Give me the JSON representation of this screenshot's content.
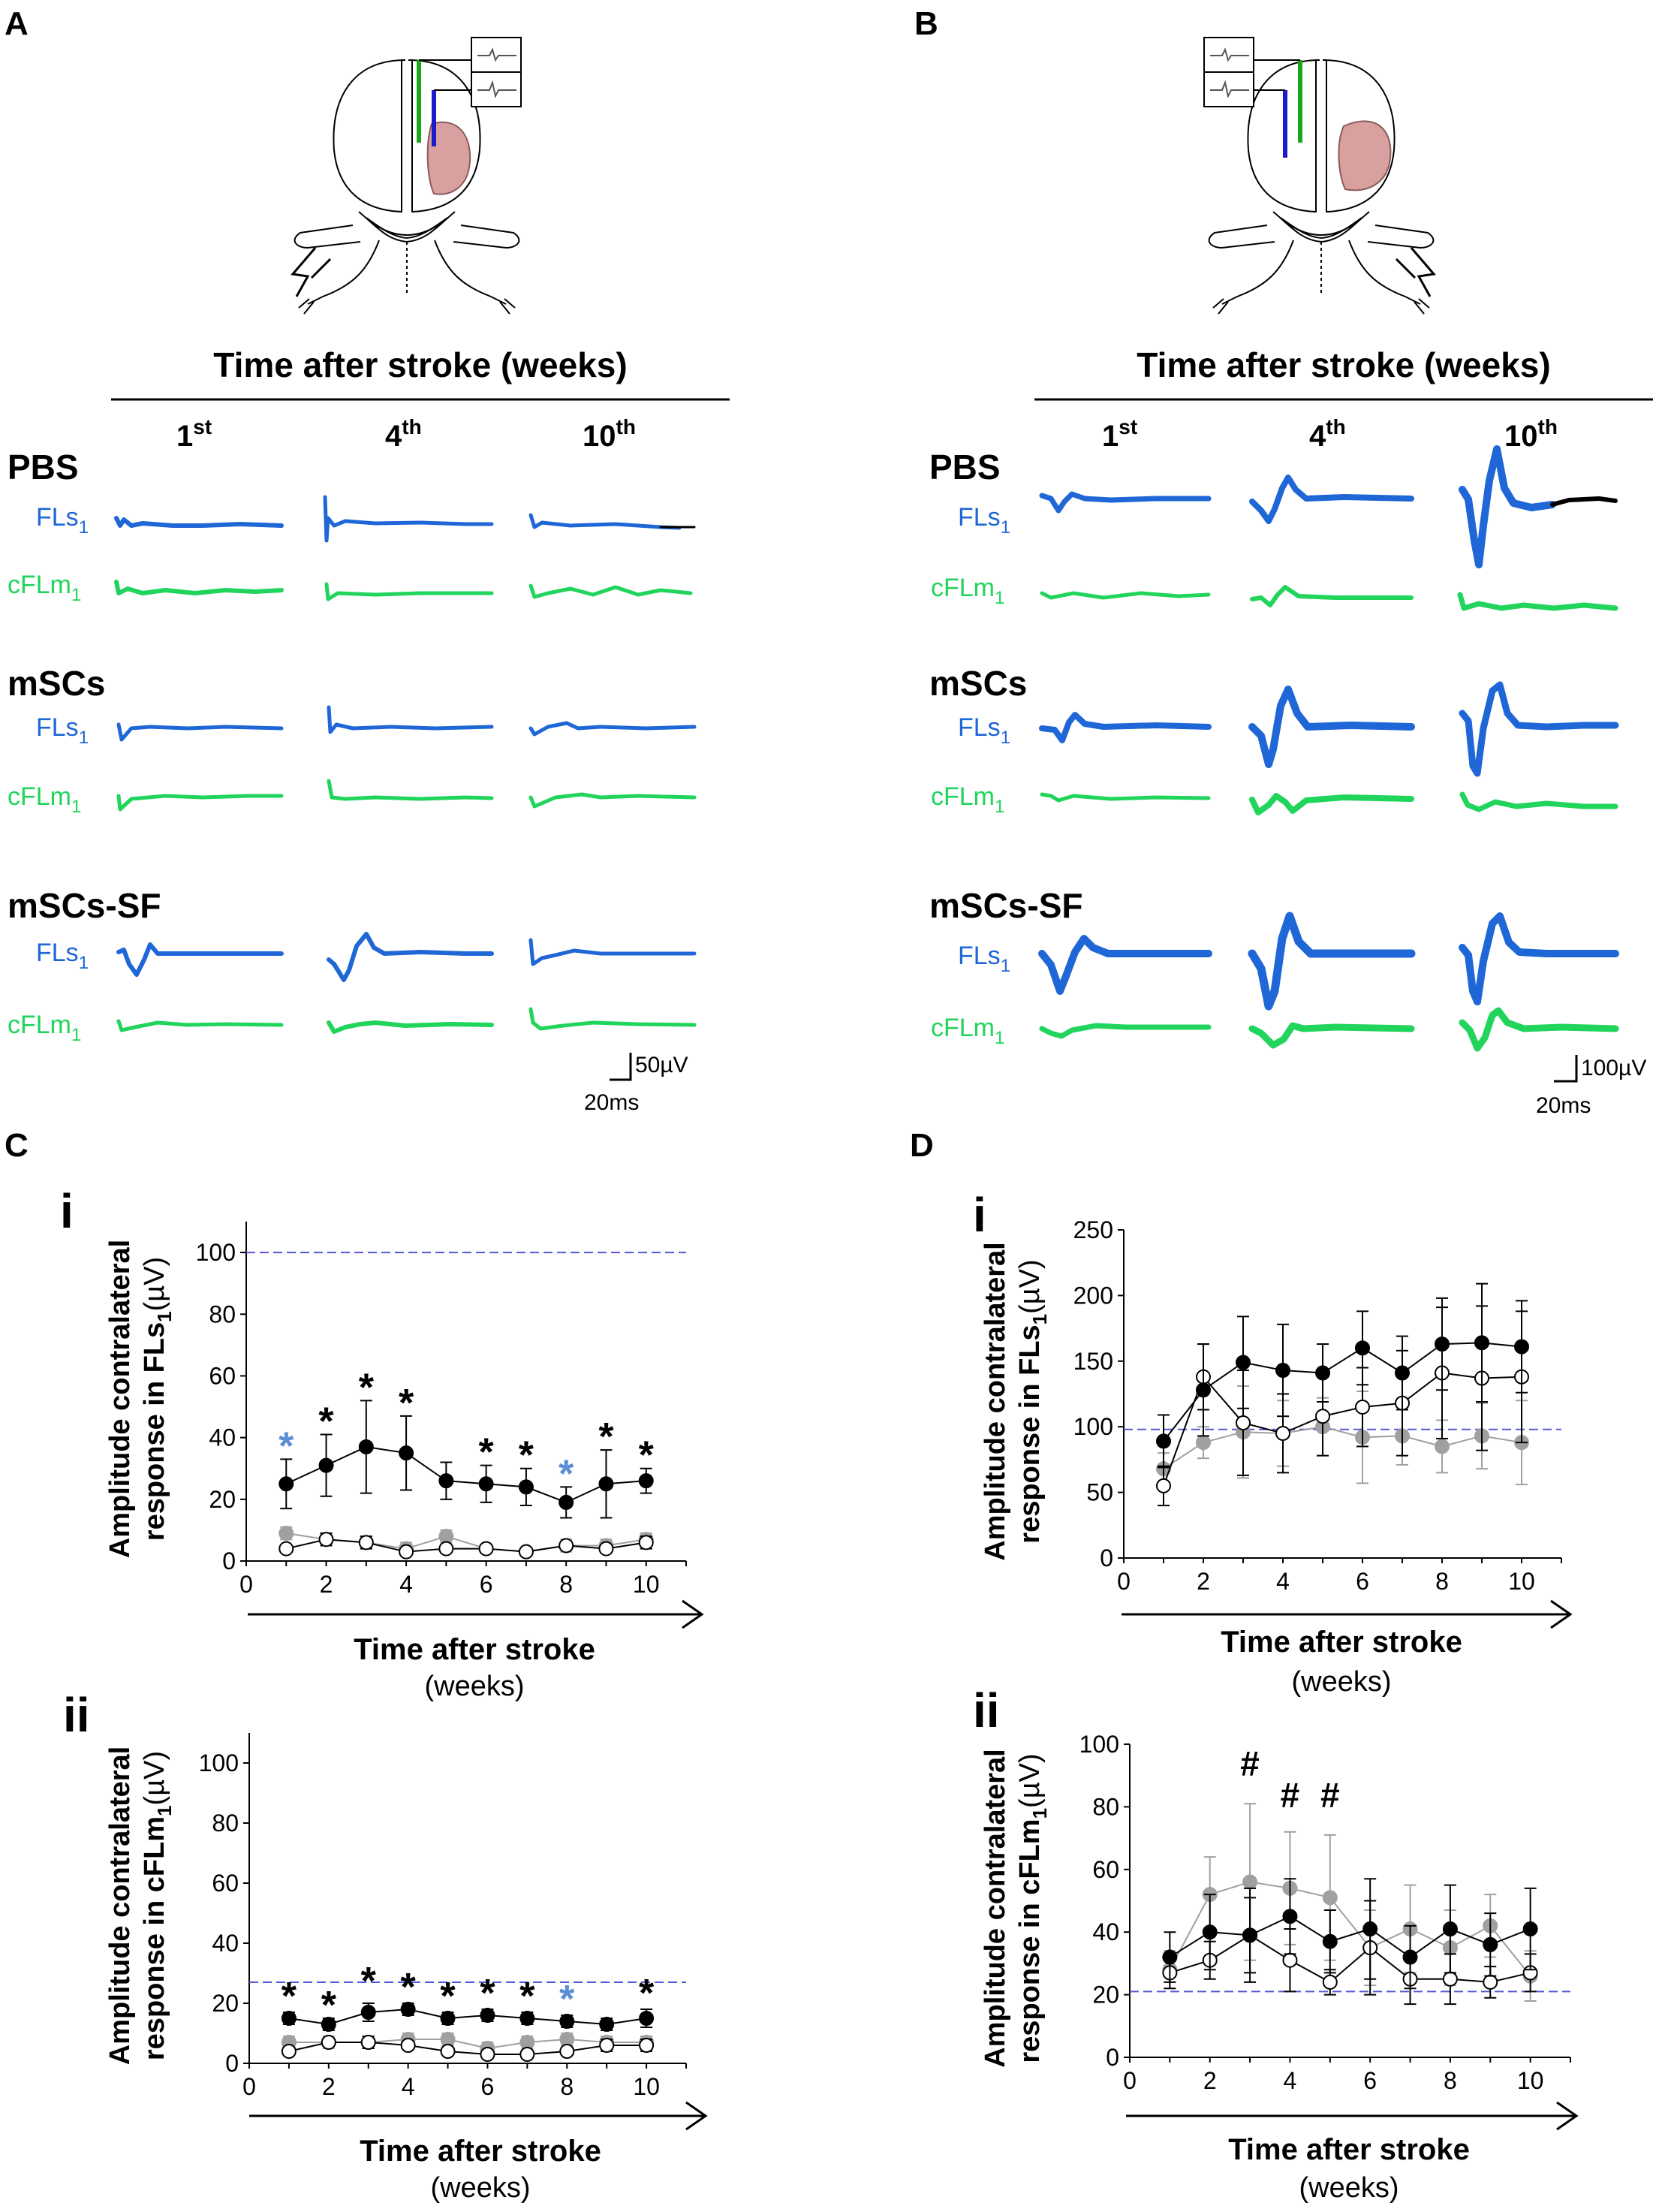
{
  "panels": {
    "A": "A",
    "B": "B",
    "C": "C",
    "D": "D"
  },
  "header": "Time after stroke (weeks)",
  "weeks": [
    {
      "num": "1",
      "sup": "st"
    },
    {
      "num": "4",
      "sup": "th"
    },
    {
      "num": "10",
      "sup": "th"
    }
  ],
  "groups": [
    "PBS",
    "mSCs",
    "mSCs-SF"
  ],
  "channels": {
    "fls": {
      "main": "FLs",
      "sub": "1"
    },
    "cflm": {
      "main": "cFLm",
      "sub": "1"
    }
  },
  "scale_bars": {
    "A": {
      "amp": "50µV",
      "time": "20ms"
    },
    "B": {
      "amp": "100µV",
      "time": "20ms"
    }
  },
  "colors": {
    "fls": "#1f66d6",
    "cfl": "#20d45c",
    "ref": "#5555d8",
    "black": "#000000",
    "gray": "#a0a0a0",
    "sig_blue": "#5b8ed6",
    "lesion": "#d9a0a0",
    "electrode_green": "#1aa81a",
    "electrode_blue": "#1b1bc8"
  },
  "chart_data": [
    {
      "id": "C-i",
      "panel": "C",
      "roman": "i",
      "type": "line",
      "ylabel": [
        "Amplitude contralateral",
        "response in FLs",
        "1",
        "(µV)"
      ],
      "xlabel": "Time after stroke",
      "xunit": "(weeks)",
      "xlim": [
        0,
        11
      ],
      "ylim": [
        0,
        110
      ],
      "xticks": [
        0,
        2,
        4,
        6,
        8,
        10
      ],
      "yticks": [
        0,
        20,
        40,
        60,
        80,
        100
      ],
      "ref_line": 100,
      "series": [
        {
          "name": "black",
          "x": [
            1,
            2,
            3,
            4,
            5,
            6,
            7,
            8,
            9,
            10
          ],
          "y": [
            25,
            31,
            37,
            35,
            26,
            25,
            24,
            19,
            25,
            26
          ],
          "err": [
            8,
            10,
            15,
            12,
            6,
            6,
            6,
            5,
            11,
            4
          ]
        },
        {
          "name": "gray",
          "x": [
            1,
            2,
            3,
            4,
            5,
            6,
            7,
            8,
            9,
            10
          ],
          "y": [
            9,
            7,
            6,
            4,
            8,
            4,
            3,
            5,
            5,
            7
          ],
          "err": [
            2,
            2,
            2,
            2,
            2,
            1,
            1,
            2,
            2,
            2
          ]
        },
        {
          "name": "open",
          "x": [
            1,
            2,
            3,
            4,
            5,
            6,
            7,
            8,
            9,
            10
          ],
          "y": [
            4,
            7,
            6,
            3,
            4,
            4,
            3,
            5,
            4,
            6
          ],
          "err": [
            1,
            2,
            2,
            1,
            1,
            1,
            1,
            1,
            1,
            2
          ]
        }
      ],
      "markers": [
        {
          "x": 1,
          "y": 33,
          "text": "*",
          "color": "blue"
        },
        {
          "x": 2,
          "y": 41,
          "text": "*",
          "color": "black"
        },
        {
          "x": 3,
          "y": 52,
          "text": "*",
          "color": "black"
        },
        {
          "x": 4,
          "y": 47,
          "text": "*",
          "color": "black"
        },
        {
          "x": 6,
          "y": 31,
          "text": "*",
          "color": "black"
        },
        {
          "x": 7,
          "y": 30,
          "text": "*",
          "color": "black"
        },
        {
          "x": 8,
          "y": 24,
          "text": "*",
          "color": "blue"
        },
        {
          "x": 9,
          "y": 36,
          "text": "*",
          "color": "black"
        },
        {
          "x": 10,
          "y": 30,
          "text": "*",
          "color": "black"
        }
      ]
    },
    {
      "id": "C-ii",
      "panel": "C",
      "roman": "ii",
      "type": "line",
      "ylabel": [
        "Amplitude contralateral",
        "response in cFLm",
        "1",
        "(µV)"
      ],
      "xlabel": "Time after stroke",
      "xunit": "(weeks)",
      "xlim": [
        0,
        11
      ],
      "ylim": [
        0,
        110
      ],
      "xticks": [
        0,
        2,
        4,
        6,
        8,
        10
      ],
      "yticks": [
        0,
        20,
        40,
        60,
        80,
        100
      ],
      "ref_line": 27,
      "series": [
        {
          "name": "black",
          "x": [
            1,
            2,
            3,
            4,
            5,
            6,
            7,
            8,
            9,
            10
          ],
          "y": [
            15,
            13,
            17,
            18,
            15,
            16,
            15,
            14,
            13,
            15
          ],
          "err": [
            2,
            2,
            3,
            2,
            2,
            2,
            2,
            2,
            2,
            3
          ]
        },
        {
          "name": "gray",
          "x": [
            1,
            2,
            3,
            4,
            5,
            6,
            7,
            8,
            9,
            10
          ],
          "y": [
            7,
            7,
            7,
            8,
            8,
            5,
            7,
            8,
            7,
            7
          ],
          "err": [
            2,
            2,
            2,
            2,
            2,
            2,
            2,
            2,
            2,
            2
          ]
        },
        {
          "name": "open",
          "x": [
            1,
            2,
            3,
            4,
            5,
            6,
            7,
            8,
            9,
            10
          ],
          "y": [
            4,
            7,
            7,
            6,
            4,
            3,
            3,
            4,
            6,
            6
          ],
          "err": [
            1,
            1,
            2,
            1,
            1,
            1,
            1,
            1,
            2,
            2
          ]
        }
      ],
      "markers": [
        {
          "x": 1,
          "y": 18,
          "text": "*",
          "color": "black"
        },
        {
          "x": 2,
          "y": 15,
          "text": "*",
          "color": "black"
        },
        {
          "x": 3,
          "y": 23,
          "text": "*",
          "color": "black"
        },
        {
          "x": 4,
          "y": 21,
          "text": "*",
          "color": "black"
        },
        {
          "x": 5,
          "y": 18,
          "text": "*",
          "color": "black"
        },
        {
          "x": 6,
          "y": 19,
          "text": "*",
          "color": "black"
        },
        {
          "x": 7,
          "y": 18,
          "text": "*",
          "color": "black"
        },
        {
          "x": 8,
          "y": 17,
          "text": "*",
          "color": "blue"
        },
        {
          "x": 10,
          "y": 19,
          "text": "*",
          "color": "black"
        }
      ]
    },
    {
      "id": "D-i",
      "panel": "D",
      "roman": "i",
      "type": "line",
      "ylabel": [
        "Amplitude contralateral",
        "response in FLs",
        "1",
        "(µV)"
      ],
      "xlabel": "Time after stroke",
      "xunit": "(weeks)",
      "xlim": [
        0,
        11
      ],
      "ylim": [
        0,
        250
      ],
      "xticks": [
        0,
        2,
        4,
        6,
        8,
        10
      ],
      "yticks": [
        0,
        50,
        100,
        150,
        200,
        250
      ],
      "ref_line": 98,
      "series": [
        {
          "name": "gray",
          "x": [
            1,
            2,
            3,
            4,
            5,
            6,
            7,
            8,
            9,
            10
          ],
          "y": [
            68,
            88,
            96,
            95,
            100,
            92,
            93,
            85,
            93,
            88
          ],
          "err": [
            12,
            12,
            35,
            25,
            22,
            35,
            22,
            20,
            25,
            32
          ]
        },
        {
          "name": "open",
          "x": [
            1,
            2,
            3,
            4,
            5,
            6,
            7,
            8,
            9,
            10
          ],
          "y": [
            55,
            138,
            103,
            95,
            108,
            115,
            118,
            141,
            137,
            138
          ],
          "err": [
            15,
            25,
            40,
            30,
            30,
            30,
            40,
            50,
            55,
            50
          ]
        },
        {
          "name": "black",
          "x": [
            1,
            2,
            3,
            4,
            5,
            6,
            7,
            8,
            9,
            10
          ],
          "y": [
            89,
            128,
            149,
            143,
            141,
            160,
            141,
            163,
            164,
            161
          ],
          "err": [
            20,
            35,
            35,
            35,
            22,
            28,
            28,
            35,
            45,
            35
          ]
        }
      ],
      "markers": []
    },
    {
      "id": "D-ii",
      "panel": "D",
      "roman": "ii",
      "type": "line",
      "ylabel": [
        "Amplitude contralateral",
        "response in cFLm",
        "1",
        "(µV)"
      ],
      "xlabel": "Time after stroke",
      "xunit": "(weeks)",
      "xlim": [
        0,
        11
      ],
      "ylim": [
        0,
        100
      ],
      "xticks": [
        0,
        2,
        4,
        6,
        8,
        10
      ],
      "yticks": [
        0,
        20,
        40,
        60,
        80,
        100
      ],
      "ref_line": 21,
      "series": [
        {
          "name": "gray",
          "x": [
            1,
            2,
            3,
            4,
            5,
            6,
            7,
            8,
            9,
            10
          ],
          "y": [
            28,
            52,
            56,
            54,
            51,
            35,
            41,
            35,
            42,
            26
          ],
          "err": [
            6,
            12,
            25,
            18,
            20,
            12,
            14,
            12,
            10,
            8
          ]
        },
        {
          "name": "open",
          "x": [
            1,
            2,
            3,
            4,
            5,
            6,
            7,
            8,
            9,
            10
          ],
          "y": [
            27,
            31,
            39,
            31,
            24,
            35,
            25,
            25,
            24,
            27
          ],
          "err": [
            5,
            6,
            12,
            10,
            4,
            15,
            8,
            8,
            5,
            6
          ]
        },
        {
          "name": "black",
          "x": [
            1,
            2,
            3,
            4,
            5,
            6,
            7,
            8,
            9,
            10
          ],
          "y": [
            32,
            40,
            39,
            45,
            37,
            41,
            32,
            41,
            36,
            41
          ],
          "err": [
            8,
            12,
            15,
            12,
            10,
            16,
            10,
            14,
            10,
            13
          ]
        }
      ],
      "markers": [
        {
          "x": 3,
          "y": 90,
          "text": "#",
          "color": "black"
        },
        {
          "x": 4,
          "y": 80,
          "text": "#",
          "color": "black"
        },
        {
          "x": 5,
          "y": 80,
          "text": "#",
          "color": "black"
        }
      ]
    }
  ]
}
